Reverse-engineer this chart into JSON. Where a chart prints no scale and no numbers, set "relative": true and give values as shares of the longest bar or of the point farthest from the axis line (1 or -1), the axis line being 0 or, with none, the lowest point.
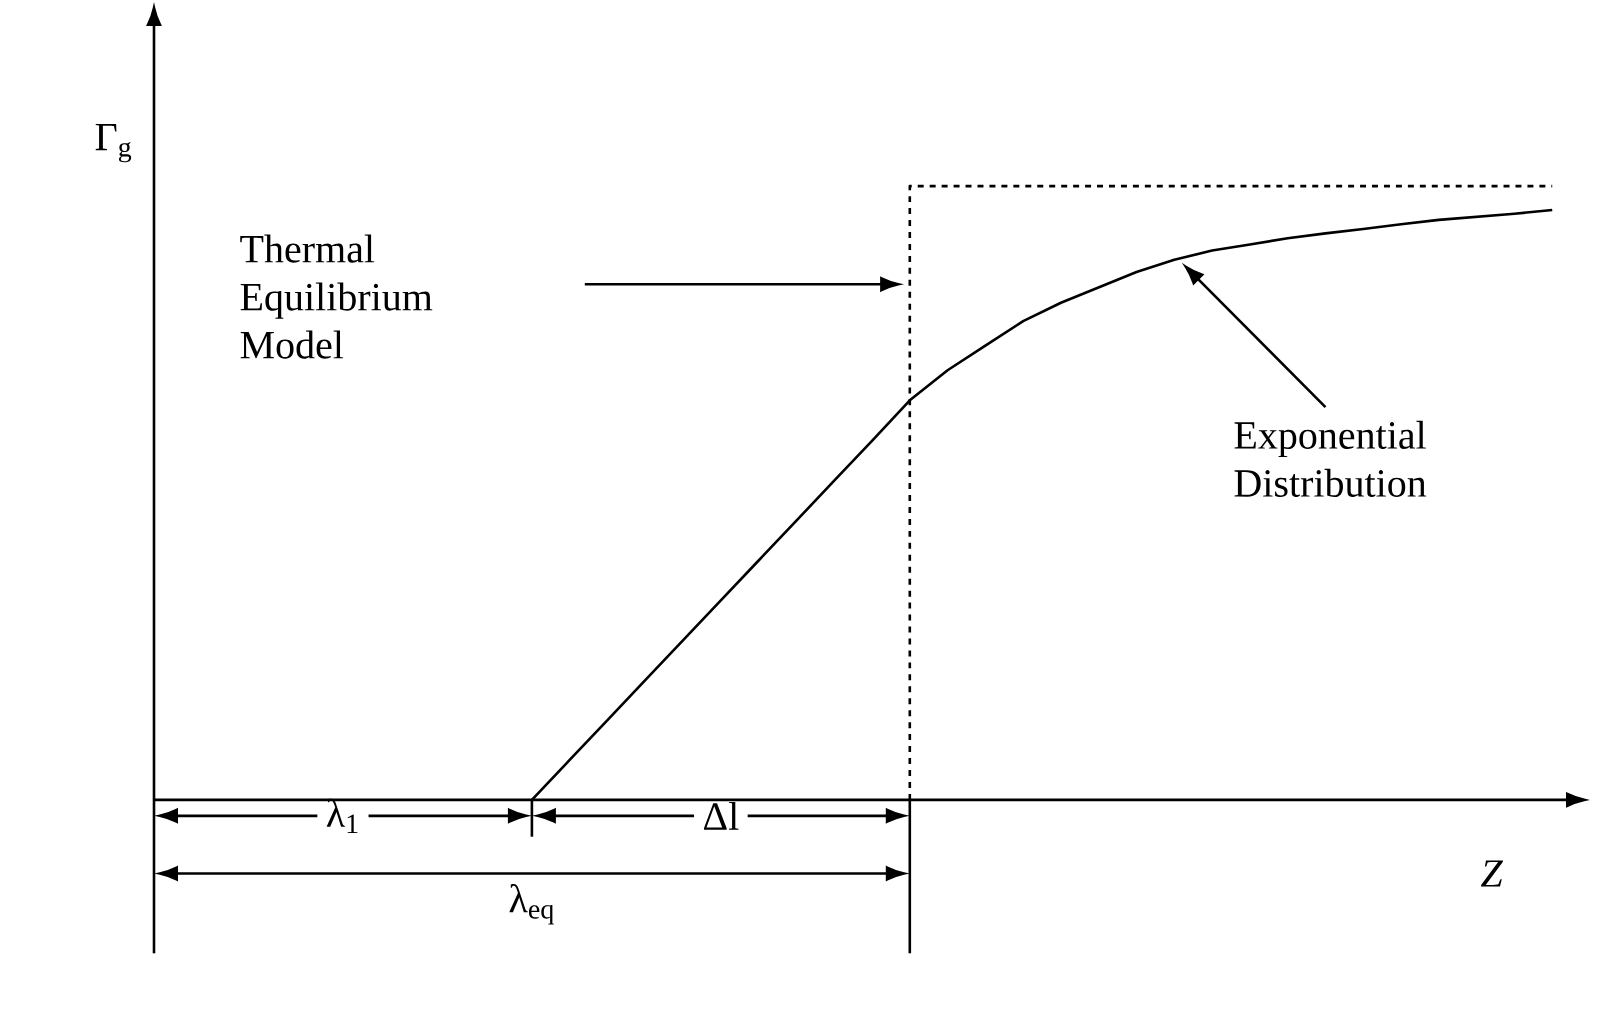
{
  "chart_data": {
    "type": "line",
    "relative": true,
    "xlabel": "*Z*",
    "ylabel": "Γ$_{g}$",
    "marker": "none",
    "categories": [
      null,
      null,
      null,
      null,
      null,
      null,
      null,
      null,
      null,
      null,
      null,
      null,
      null,
      null,
      null,
      null,
      null,
      null,
      null,
      null,
      null,
      null,
      null,
      null,
      null,
      null,
      null,
      null,
      null,
      null,
      null,
      null,
      null,
      null,
      null,
      null,
      null,
      null,
      null
    ],
    "series": [
      {
        "color": "#000000",
        "line_style": "solid",
        "values": [
          null,
          null,
          null,
          null,
          null,
          null,
          null,
          null,
          null,
          null,
          0,
          0.065,
          0.13,
          0.195,
          0.26,
          0.325,
          0.39,
          0.455,
          0.52,
          0.585,
          0.651,
          0.7,
          0.74,
          0.78,
          0.81,
          0.835,
          0.86,
          0.88,
          0.895,
          0.905,
          0.915,
          0.923,
          0.93,
          0.938,
          0.945,
          0.95,
          0.955,
          0.961,
          null
        ]
      },
      {
        "type": "step",
        "color": "#000000",
        "line_style": "dashed",
        "values": [
          null,
          null,
          null,
          null,
          null,
          null,
          null,
          null,
          null,
          null,
          null,
          null,
          null,
          null,
          null,
          null,
          null,
          null,
          null,
          null,
          0,
          1,
          1,
          1,
          1,
          1,
          1,
          1,
          1,
          1,
          1,
          1,
          1,
          1,
          1,
          1,
          1,
          1,
          null
        ]
      }
    ],
    "annotations": [
      "Thermal Equilibrium Model",
      "Exponential Distribution",
      "λ$_{1}$",
      "Δl",
      "λ$_{eq}$"
    ]
  }
}
